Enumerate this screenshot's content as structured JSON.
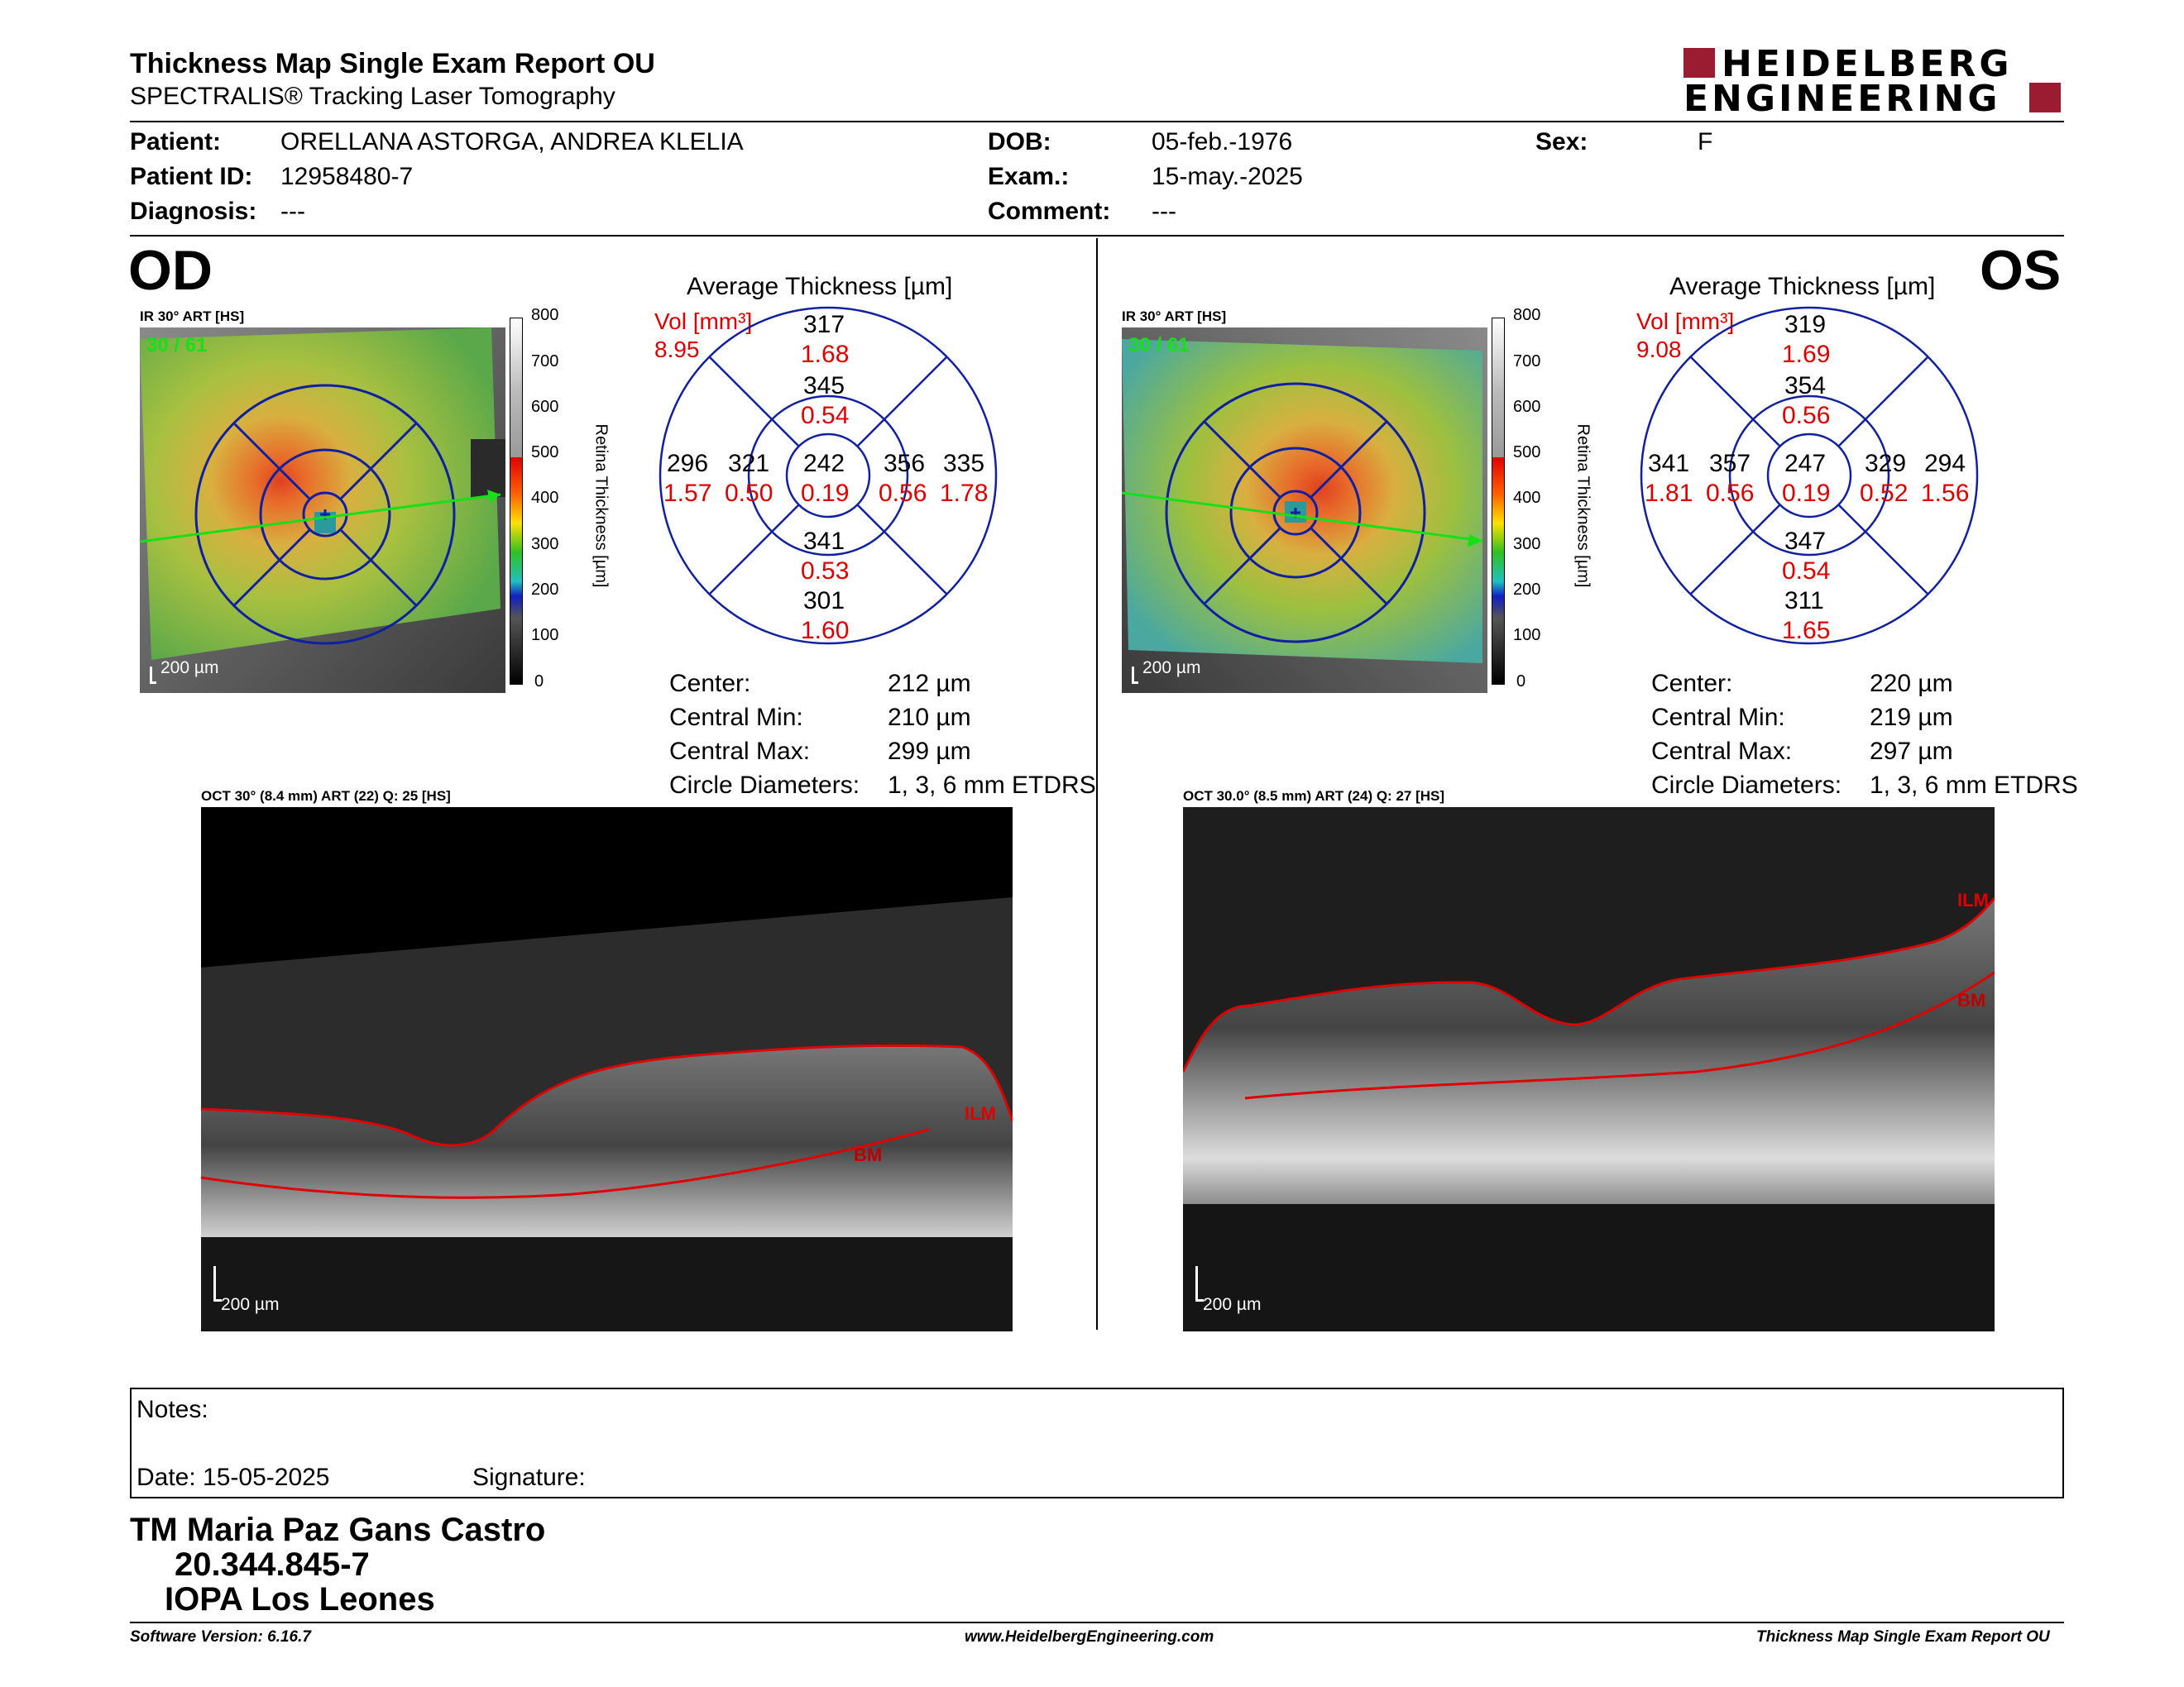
{
  "header": {
    "title": "Thickness Map Single Exam Report OU",
    "subtitle": "SPECTRALIS® Tracking Laser Tomography",
    "logo_line1": "HEIDELBERG",
    "logo_line2": "ENGINEERING",
    "brand_color": "#9b1b30"
  },
  "patient": {
    "patient_label": "Patient:",
    "patient_value": "ORELLANA ASTORGA, ANDREA KLELIA",
    "id_label": "Patient ID:",
    "id_value": "12958480-7",
    "diagnosis_label": "Diagnosis:",
    "diagnosis_value": "---",
    "dob_label": "DOB:",
    "dob_value": "05-feb.-1976",
    "exam_label": "Exam.:",
    "exam_value": "15-may.-2025",
    "comment_label": "Comment:",
    "comment_value": "---",
    "sex_label": "Sex:",
    "sex_value": "F"
  },
  "od": {
    "eye": "OD",
    "ir_label": "IR 30° ART [HS]",
    "scan_counter": "30 / 61",
    "scale": "200 µm",
    "colorbar_title": "Retina Thickness [µm]",
    "colorbar_ticks": [
      "800",
      "700",
      "600",
      "500",
      "400",
      "300",
      "200",
      "100",
      "0"
    ],
    "avg_title": "Average Thickness [µm]",
    "vol_label": "Vol [mm³]",
    "vol_value": "8.95",
    "sectors": {
      "outer_top": {
        "t": "317",
        "v": "1.68"
      },
      "inner_top": {
        "t": "345",
        "v": "0.54"
      },
      "outer_left": {
        "t": "296",
        "v": "1.57"
      },
      "inner_left": {
        "t": "321",
        "v": "0.50"
      },
      "center": {
        "t": "242",
        "v": "0.19"
      },
      "inner_right": {
        "t": "356",
        "v": "0.56"
      },
      "outer_right": {
        "t": "335",
        "v": "1.78"
      },
      "inner_bottom": {
        "t": "341",
        "v": "0.53"
      },
      "outer_bottom": {
        "t": "301",
        "v": "1.60"
      }
    },
    "stats": [
      {
        "label": "Center:",
        "value": "212 µm"
      },
      {
        "label": "Central Min:",
        "value": "210 µm"
      },
      {
        "label": "Central Max:",
        "value": "299 µm"
      },
      {
        "label": "Circle Diameters:",
        "value": "1, 3, 6 mm ETDRS"
      }
    ],
    "oct_label": "OCT 30° (8.4 mm) ART (22) Q: 25 [HS]",
    "ilm": "ILM",
    "bm": "BM",
    "oct_scale": "200 µm"
  },
  "os": {
    "eye": "OS",
    "ir_label": "IR 30° ART [HS]",
    "scan_counter": "30 / 61",
    "scale": "200 µm",
    "colorbar_title": "Retina Thickness [µm]",
    "colorbar_ticks": [
      "800",
      "700",
      "600",
      "500",
      "400",
      "300",
      "200",
      "100",
      "0"
    ],
    "avg_title": "Average Thickness [µm]",
    "vol_label": "Vol [mm³]",
    "vol_value": "9.08",
    "sectors": {
      "outer_top": {
        "t": "319",
        "v": "1.69"
      },
      "inner_top": {
        "t": "354",
        "v": "0.56"
      },
      "outer_left": {
        "t": "341",
        "v": "1.81"
      },
      "inner_left": {
        "t": "357",
        "v": "0.56"
      },
      "center": {
        "t": "247",
        "v": "0.19"
      },
      "inner_right": {
        "t": "329",
        "v": "0.52"
      },
      "outer_right": {
        "t": "294",
        "v": "1.56"
      },
      "inner_bottom": {
        "t": "347",
        "v": "0.54"
      },
      "outer_bottom": {
        "t": "311",
        "v": "1.65"
      }
    },
    "stats": [
      {
        "label": "Center:",
        "value": "220 µm"
      },
      {
        "label": "Central Min:",
        "value": "219 µm"
      },
      {
        "label": "Central Max:",
        "value": "297 µm"
      },
      {
        "label": "Circle Diameters:",
        "value": "1, 3, 6 mm ETDRS"
      }
    ],
    "oct_label": "OCT 30.0° (8.5 mm) ART (24) Q: 27 [HS]",
    "ilm": "ILM",
    "bm": "BM",
    "oct_scale": "200 µm"
  },
  "notes": {
    "notes_label": "Notes:",
    "date_label": "Date: 15-05-2025",
    "signature_label": "Signature:"
  },
  "signature": {
    "name": "TM Maria Paz Gans Castro",
    "rut": "20.344.845-7",
    "institution": "IOPA Los Leones"
  },
  "footer": {
    "software": "Software Version: 6.16.7",
    "website": "www.HeidelbergEngineering.com",
    "report": "Thickness Map Single Exam Report OU"
  },
  "colors": {
    "sector_thickness": "#000000",
    "sector_volume": "#e00000",
    "grid_lines": "#1020a0",
    "scan_line": "#18e018",
    "ilm_bm": "#e00000"
  }
}
